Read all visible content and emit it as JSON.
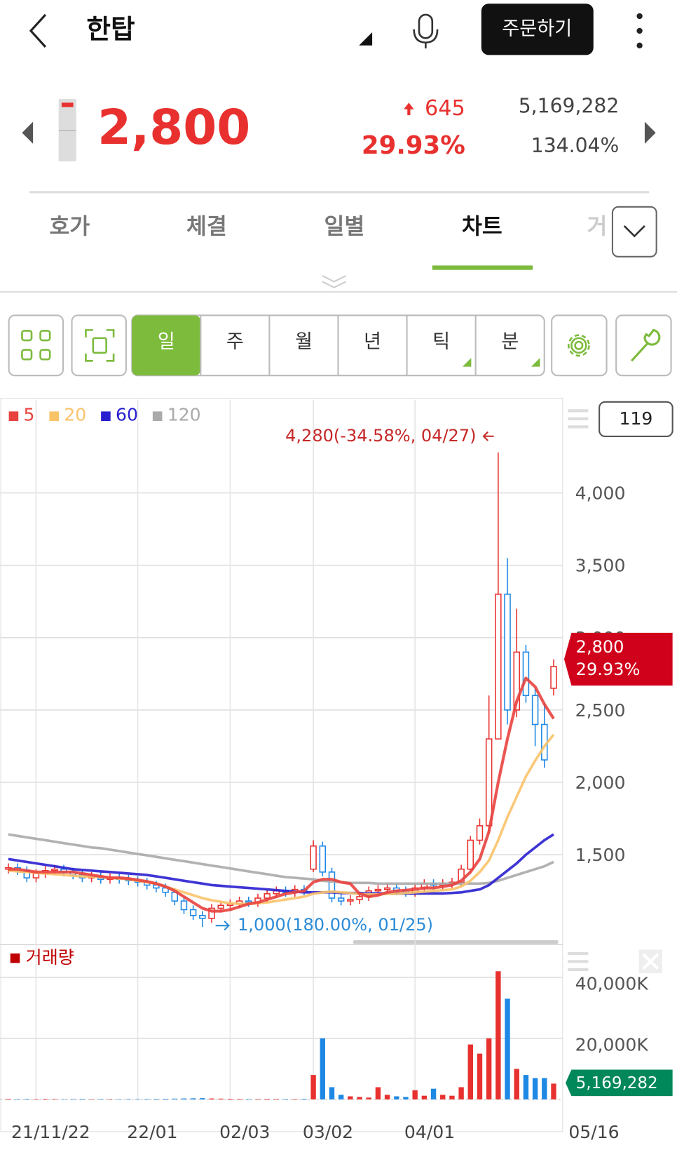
{
  "header": {
    "title": "한탑",
    "order_button": "주문하기"
  },
  "quote": {
    "price": "2,800",
    "change": "645",
    "change_pct": "29.93%",
    "volume": "5,169,282",
    "turnover_pct": "134.04%"
  },
  "tabs": [
    "호가",
    "체결",
    "일별",
    "차트",
    "거"
  ],
  "active_tab": 3,
  "periods": [
    "일",
    "주",
    "월",
    "년",
    "틱",
    "분"
  ],
  "active_period": 0,
  "chart_data": [
    {
      "type": "candlestick",
      "display_count": "119",
      "grid": true,
      "up_color": "#e8312f",
      "down_color": "#1e88e5",
      "ylim": [
        919,
        4644
      ],
      "yticks": [
        {
          "value": 1500,
          "label": "1,500"
        },
        {
          "value": 2000,
          "label": "2,000"
        },
        {
          "value": 2500,
          "label": "2,500"
        },
        {
          "value": 3000,
          "label": "3,000"
        },
        {
          "value": 3500,
          "label": "3,500"
        },
        {
          "value": 4000,
          "label": "4,000"
        }
      ],
      "categories": [
        null,
        null,
        null,
        "21/11/22",
        null,
        null,
        null,
        null,
        null,
        null,
        null,
        null,
        null,
        null,
        "22/01",
        null,
        null,
        null,
        null,
        null,
        null,
        null,
        null,
        null,
        "02/03",
        null,
        null,
        null,
        null,
        null,
        null,
        null,
        null,
        "03/02",
        null,
        null,
        null,
        null,
        null,
        null,
        null,
        null,
        null,
        null,
        "04/01",
        null,
        null,
        null,
        null,
        null,
        null,
        null,
        null,
        null,
        null,
        null,
        null,
        null,
        null,
        "05/16"
      ],
      "candles": {
        "open": [
          1400,
          1410,
          1390,
          1340,
          1370,
          1390,
          1400,
          1380,
          1360,
          1340,
          1350,
          1330,
          1340,
          1330,
          1320,
          1310,
          1290,
          1270,
          1240,
          1180,
          1120,
          1080,
          1060,
          1130,
          1150,
          1160,
          1180,
          1170,
          1200,
          1230,
          1250,
          1240,
          1260,
          1400,
          1560,
          1380,
          1200,
          1180,
          1190,
          1210,
          1250,
          1260,
          1270,
          1250,
          1240,
          1270,
          1300,
          1290,
          1300,
          1310,
          1400,
          1600,
          1700,
          2300,
          3300,
          2500,
          2900,
          2600,
          2400,
          2650
        ],
        "high": [
          1440,
          1440,
          1420,
          1400,
          1420,
          1430,
          1430,
          1410,
          1390,
          1380,
          1380,
          1370,
          1370,
          1360,
          1350,
          1340,
          1320,
          1300,
          1270,
          1210,
          1150,
          1110,
          1160,
          1180,
          1190,
          1210,
          1210,
          1230,
          1260,
          1280,
          1280,
          1290,
          1290,
          1600,
          1590,
          1410,
          1230,
          1220,
          1240,
          1280,
          1290,
          1300,
          1300,
          1280,
          1300,
          1330,
          1330,
          1330,
          1340,
          1430,
          1630,
          1750,
          2600,
          4280,
          3550,
          3200,
          2950,
          2650,
          2550,
          2850
        ],
        "low": [
          1370,
          1360,
          1310,
          1310,
          1340,
          1360,
          1350,
          1330,
          1310,
          1310,
          1300,
          1300,
          1300,
          1290,
          1280,
          1260,
          1240,
          1210,
          1150,
          1090,
          1050,
          1000,
          1030,
          1100,
          1120,
          1130,
          1140,
          1140,
          1170,
          1200,
          1210,
          1210,
          1220,
          1380,
          1350,
          1170,
          1150,
          1150,
          1160,
          1180,
          1220,
          1230,
          1220,
          1210,
          1210,
          1240,
          1260,
          1260,
          1270,
          1280,
          1370,
          1570,
          1650,
          2300,
          2400,
          2450,
          2550,
          2250,
          2100,
          2600
        ],
        "close": [
          1410,
          1390,
          1340,
          1370,
          1390,
          1400,
          1380,
          1360,
          1340,
          1350,
          1330,
          1340,
          1330,
          1320,
          1310,
          1290,
          1270,
          1240,
          1180,
          1120,
          1080,
          1060,
          1130,
          1150,
          1160,
          1180,
          1170,
          1200,
          1230,
          1250,
          1240,
          1260,
          1250,
          1560,
          1380,
          1200,
          1180,
          1190,
          1210,
          1250,
          1260,
          1270,
          1250,
          1240,
          1270,
          1300,
          1290,
          1300,
          1310,
          1400,
          1600,
          1700,
          2300,
          3300,
          2500,
          2900,
          2600,
          2400,
          2155,
          2800
        ]
      },
      "series": [
        {
          "name": "5",
          "color": "#e8433f",
          "values": [
            1400,
            1400,
            1390,
            1380,
            1380,
            1380,
            1380,
            1380,
            1370,
            1360,
            1350,
            1340,
            1340,
            1335,
            1325,
            1315,
            1300,
            1280,
            1250,
            1210,
            1170,
            1130,
            1110,
            1110,
            1120,
            1140,
            1160,
            1170,
            1190,
            1210,
            1230,
            1240,
            1250,
            1310,
            1330,
            1330,
            1310,
            1300,
            1230,
            1210,
            1220,
            1240,
            1250,
            1255,
            1260,
            1270,
            1270,
            1280,
            1290,
            1320,
            1380,
            1470,
            1660,
            2000,
            2300,
            2560,
            2720,
            2660,
            2540,
            2440
          ]
        },
        {
          "name": "20",
          "color": "#f9c36a",
          "values": [
            1390,
            1385,
            1380,
            1375,
            1370,
            1365,
            1360,
            1355,
            1350,
            1350,
            1345,
            1340,
            1335,
            1330,
            1320,
            1310,
            1300,
            1280,
            1260,
            1240,
            1220,
            1200,
            1185,
            1175,
            1165,
            1160,
            1160,
            1165,
            1170,
            1180,
            1190,
            1200,
            1210,
            1230,
            1240,
            1245,
            1240,
            1235,
            1230,
            1225,
            1225,
            1230,
            1230,
            1235,
            1240,
            1245,
            1250,
            1255,
            1260,
            1280,
            1320,
            1380,
            1460,
            1600,
            1760,
            1900,
            2040,
            2150,
            2250,
            2330
          ]
        },
        {
          "name": "60",
          "color": "#2a1fcf",
          "values": [
            1470,
            1460,
            1450,
            1440,
            1430,
            1420,
            1410,
            1400,
            1395,
            1390,
            1385,
            1380,
            1375,
            1370,
            1365,
            1360,
            1350,
            1340,
            1330,
            1320,
            1310,
            1300,
            1290,
            1285,
            1280,
            1275,
            1270,
            1265,
            1260,
            1255,
            1250,
            1245,
            1240,
            1240,
            1240,
            1240,
            1235,
            1235,
            1235,
            1232,
            1232,
            1232,
            1232,
            1232,
            1232,
            1232,
            1232,
            1232,
            1235,
            1240,
            1250,
            1260,
            1290,
            1340,
            1390,
            1440,
            1500,
            1550,
            1600,
            1640
          ]
        },
        {
          "name": "120",
          "color": "#aaaaaa",
          "values": [
            1640,
            1630,
            1620,
            1610,
            1600,
            1590,
            1580,
            1570,
            1560,
            1550,
            1545,
            1535,
            1525,
            1515,
            1505,
            1495,
            1485,
            1475,
            1465,
            1455,
            1445,
            1435,
            1425,
            1415,
            1405,
            1395,
            1385,
            1375,
            1365,
            1355,
            1345,
            1340,
            1335,
            1330,
            1320,
            1315,
            1310,
            1305,
            1305,
            1305,
            1300,
            1300,
            1300,
            1300,
            1300,
            1300,
            1300,
            1300,
            1300,
            1300,
            1300,
            1300,
            1305,
            1320,
            1340,
            1360,
            1380,
            1400,
            1420,
            1450
          ]
        }
      ],
      "annotations": [
        {
          "text": "4,280(-34.58%, 04/27)",
          "color": "#c62828"
        },
        {
          "text": "1,000(180.00%, 01/25)",
          "color": "#2a8bd8"
        }
      ]
    },
    {
      "type": "bar",
      "title": "거래량",
      "title_color": "#c00000",
      "grid": true,
      "ylim": [
        0,
        50000
      ],
      "yticks": [
        {
          "value": 20000,
          "label": "20,000K"
        },
        {
          "value": 40000,
          "label": "40,000K"
        }
      ],
      "values": [
        200,
        150,
        180,
        150,
        200,
        150,
        120,
        150,
        180,
        120,
        150,
        130,
        120,
        150,
        140,
        160,
        180,
        200,
        250,
        300,
        350,
        400,
        300,
        250,
        200,
        180,
        150,
        150,
        200,
        180,
        150,
        150,
        200,
        8000,
        20000,
        4000,
        1500,
        1000,
        800,
        600,
        4000,
        1500,
        1000,
        800,
        3000,
        1200,
        3500,
        1500,
        1200,
        4000,
        18000,
        15000,
        20000,
        42000,
        33000,
        10000,
        8000,
        7000,
        7000,
        5169.282
      ]
    }
  ]
}
